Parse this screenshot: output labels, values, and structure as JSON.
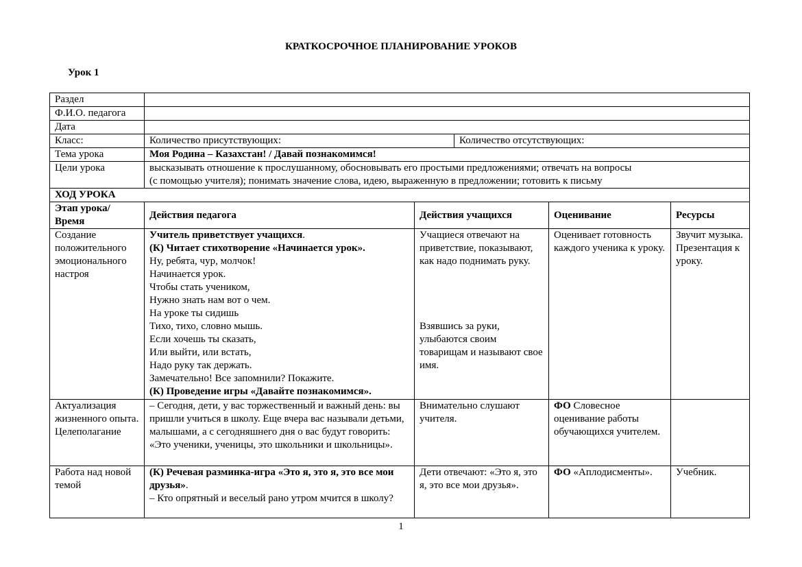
{
  "title": "КРАТКОСРОЧНОЕ ПЛАНИРОВАНИЕ УРОКОВ",
  "lesson": "Урок 1",
  "info": {
    "section_label": "Раздел",
    "teacher_label": "Ф.И.О. педагога",
    "date_label": "Дата",
    "class_label": "Класс:",
    "present_label": "Количество присутствующих:",
    "absent_label": "Количество отсутствующих:",
    "topic_label": "Тема урока",
    "topic": "Моя Родина – Казахстан! / Давай познакомимся!",
    "goals_label": "Цели урока",
    "goals": [
      "высказывать отношение к прослушанному, обосновывать его простыми предложениями; отвечать на вопросы",
      "(с помощью учителя); понимать значение слова, идею, выраженную в предложении; готовить к письму"
    ]
  },
  "course_header": "ХОД УРОКА",
  "columns": [
    "Этап урока/Время",
    "Действия педагога",
    "Действия учащихся",
    "Оценивание",
    "Ресурсы"
  ],
  "rows": [
    {
      "stage": "Создание положительного эмоционального настроя",
      "teacher": [
        {
          "b": "Учитель приветствует учащихся",
          "n": "."
        },
        {
          "b": "(К) Читает стихотворение «Начинается урок».",
          "n": ""
        },
        {
          "b": "",
          "n": "Ну, ребята, чур, молчок!"
        },
        {
          "b": "",
          "n": "Начинается урок."
        },
        {
          "b": "",
          "n": "Чтобы стать учеником,"
        },
        {
          "b": "",
          "n": "Нужно знать нам вот о чем."
        },
        {
          "b": "",
          "n": "На уроке ты сидишь"
        },
        {
          "b": "",
          "n": "Тихо, тихо, словно мышь."
        },
        {
          "b": "",
          "n": "Если хочешь ты сказать,"
        },
        {
          "b": "",
          "n": "Или выйти, или встать,"
        },
        {
          "b": "",
          "n": "Надо руку так держать."
        },
        {
          "b": "",
          "n": "Замечательно! Все запомнили? Покажите."
        },
        {
          "b": "(К) Проведение игры «Давайте познакомимся».",
          "n": ""
        }
      ],
      "students": [
        "Учащиеся отвечают на приветствие, показывают, как надо поднимать руку.",
        "Взявшись за руки, улыбаются своим товарищам и называют свое имя."
      ],
      "assessment_bold": "",
      "assessment": "Оценивает готовность каждого ученика к уроку.",
      "resources": "Звучит музыка. Презентация к уроку."
    },
    {
      "stage": "Актуализация жизненного опыта. Целеполагание",
      "teacher": [
        {
          "b": "",
          "n": "– Сегодня, дети, у вас торжественный и важный день: вы пришли учиться в школу. Еще вчера вас называли детьми, малышами, а с сегодняшнего дня о вас будут говорить: «Это ученики, ученицы, это школьники и школьницы»."
        }
      ],
      "students": [
        "Внимательно слушают учителя."
      ],
      "assessment_bold": "ФО",
      "assessment": " Словесное оценивание работы обучающихся учителем.",
      "resources": ""
    },
    {
      "stage": "Работа над новой темой",
      "teacher": [
        {
          "b": "(К) Речевая разминка-игра «Это я, это я, это все мои друзья»",
          "n": "."
        },
        {
          "b": "",
          "n": "– Кто опрятный и веселый рано утром мчится в школу?"
        }
      ],
      "students": [
        "Дети отвечают: «Это я, это я, это все мои друзья»."
      ],
      "assessment_bold": "ФО",
      "assessment": " «Аплодисменты».",
      "resources": "Учебник."
    }
  ],
  "page_number": "1"
}
